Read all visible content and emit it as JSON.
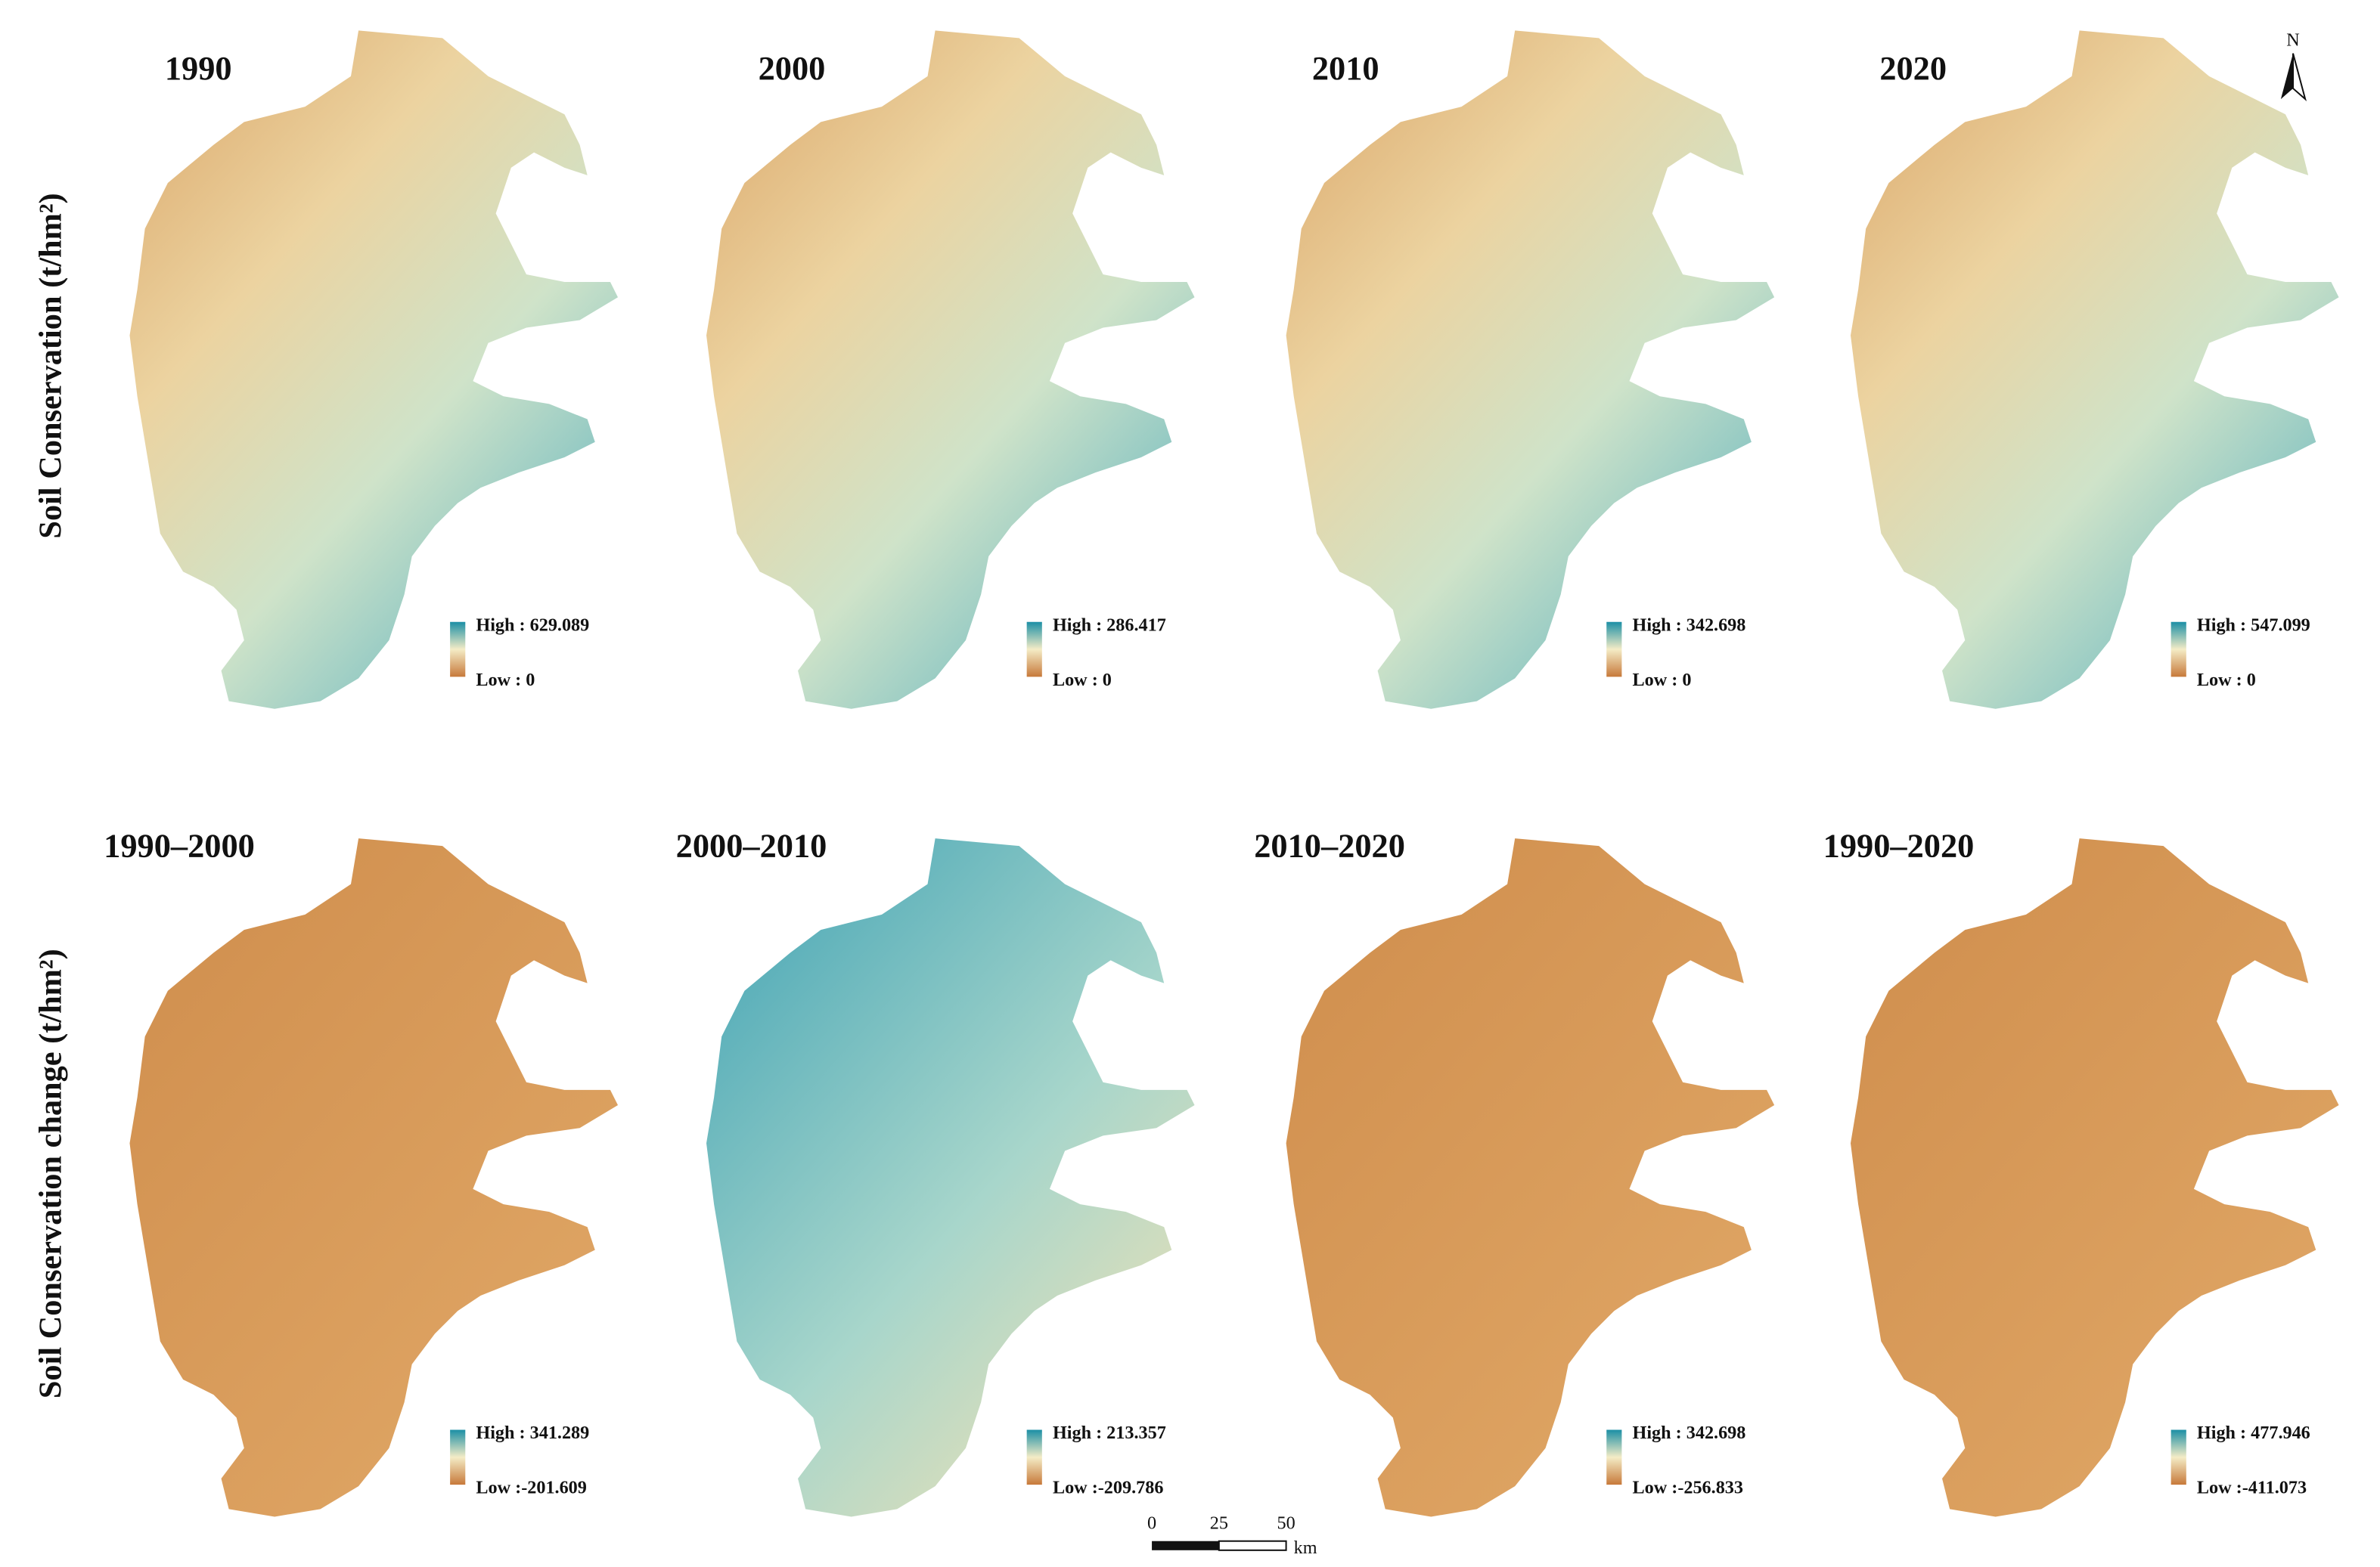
{
  "row_labels": [
    "Soil Conservation (t/hm²)",
    "Soil Conservation change (t/hm²)"
  ],
  "panels": [
    {
      "title": "1990",
      "high": "High : 629.089",
      "low": "Low : 0"
    },
    {
      "title": "2000",
      "high": "High : 286.417",
      "low": "Low : 0"
    },
    {
      "title": "2010",
      "high": "High : 342.698",
      "low": "Low : 0"
    },
    {
      "title": "2020",
      "high": "High : 547.099",
      "low": "Low : 0"
    },
    {
      "title": "1990–2000",
      "high": "High : 341.289",
      "low": "Low :-201.609"
    },
    {
      "title": "2000–2010",
      "high": "High : 213.357",
      "low": "Low :-209.786"
    },
    {
      "title": "2010–2020",
      "high": "High : 342.698",
      "low": "Low :-256.833"
    },
    {
      "title": "1990–2020",
      "high": "High : 477.946",
      "low": "Low :-411.073"
    }
  ],
  "scale_bar": {
    "ticks": [
      "0",
      "25",
      "50"
    ],
    "unit": "km"
  },
  "north": "N"
}
